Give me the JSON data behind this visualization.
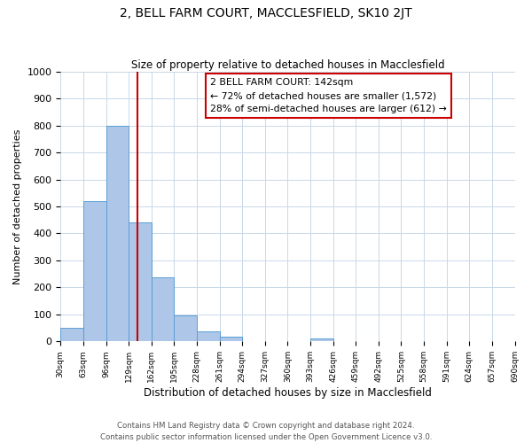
{
  "title": "2, BELL FARM COURT, MACCLESFIELD, SK10 2JT",
  "subtitle": "Size of property relative to detached houses in Macclesfield",
  "xlabel": "Distribution of detached houses by size in Macclesfield",
  "ylabel": "Number of detached properties",
  "bin_edges": [
    30,
    63,
    96,
    129,
    162,
    195,
    228,
    261,
    294,
    327,
    360,
    393,
    426,
    459,
    492,
    525,
    558,
    591,
    624,
    657,
    690
  ],
  "bin_labels": [
    "30sqm",
    "63sqm",
    "96sqm",
    "129sqm",
    "162sqm",
    "195sqm",
    "228sqm",
    "261sqm",
    "294sqm",
    "327sqm",
    "360sqm",
    "393sqm",
    "426sqm",
    "459sqm",
    "492sqm",
    "525sqm",
    "558sqm",
    "591sqm",
    "624sqm",
    "657sqm",
    "690sqm"
  ],
  "bar_heights": [
    50,
    520,
    800,
    440,
    238,
    96,
    37,
    17,
    0,
    0,
    0,
    10,
    0,
    0,
    0,
    0,
    0,
    0,
    0,
    0
  ],
  "bar_color": "#aec6e8",
  "bar_edge_color": "#5a9fd4",
  "vline_x": 142,
  "vline_color": "#cc0000",
  "ylim": [
    0,
    1000
  ],
  "yticks": [
    0,
    100,
    200,
    300,
    400,
    500,
    600,
    700,
    800,
    900,
    1000
  ],
  "annotation_title": "2 BELL FARM COURT: 142sqm",
  "annotation_line1": "← 72% of detached houses are smaller (1,572)",
  "annotation_line2": "28% of semi-detached houses are larger (612) →",
  "annotation_box_color": "#ffffff",
  "annotation_box_edge": "#cc0000",
  "footnote1": "Contains HM Land Registry data © Crown copyright and database right 2024.",
  "footnote2": "Contains public sector information licensed under the Open Government Licence v3.0.",
  "background_color": "#ffffff",
  "grid_color": "#c8d8e8"
}
